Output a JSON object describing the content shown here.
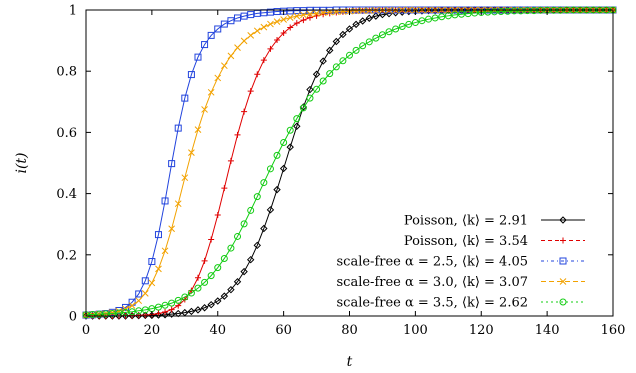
{
  "chart_data": {
    "type": "line",
    "title": "",
    "xlabel": "t",
    "ylabel": "i(t)",
    "xlim": [
      0,
      160
    ],
    "ylim": [
      0,
      1
    ],
    "xticks": [
      0,
      20,
      40,
      60,
      80,
      100,
      120,
      140,
      160
    ],
    "xtick_labels": [
      "0",
      "20",
      "40",
      "60",
      "80",
      "100",
      "120",
      "140",
      "160"
    ],
    "yticks": [
      0,
      0.2,
      0.4,
      0.6,
      0.8,
      1
    ],
    "ytick_labels": [
      "0",
      "0.2",
      "0.4",
      "0.6",
      "0.8",
      "1"
    ],
    "grid": false,
    "legend_position": "bottom-right",
    "x": [
      0,
      2,
      4,
      6,
      8,
      10,
      12,
      14,
      16,
      18,
      20,
      22,
      24,
      26,
      28,
      30,
      32,
      34,
      36,
      38,
      40,
      42,
      44,
      46,
      48,
      50,
      52,
      54,
      56,
      58,
      60,
      62,
      64,
      66,
      68,
      70,
      72,
      74,
      76,
      78,
      80,
      82,
      84,
      86,
      88,
      90,
      92,
      94,
      96,
      98,
      100,
      102,
      104,
      106,
      108,
      110,
      112,
      114,
      116,
      118,
      120,
      122,
      124,
      126,
      128,
      130,
      132,
      134,
      136,
      138,
      140,
      142,
      144,
      146,
      148,
      150,
      152,
      154,
      156,
      158,
      160
    ],
    "series": [
      {
        "name": "Poisson, ⟨k⟩ = 2.91",
        "color": "#000000",
        "marker": "diamond",
        "dash": "",
        "values": [
          0.0,
          0.0,
          0.0,
          0.0,
          0.0,
          0.0,
          0.0,
          0.001,
          0.001,
          0.002,
          0.002,
          0.003,
          0.004,
          0.006,
          0.008,
          0.011,
          0.015,
          0.02,
          0.027,
          0.037,
          0.049,
          0.065,
          0.086,
          0.112,
          0.145,
          0.184,
          0.231,
          0.286,
          0.347,
          0.413,
          0.482,
          0.552,
          0.62,
          0.683,
          0.74,
          0.79,
          0.833,
          0.868,
          0.897,
          0.92,
          0.938,
          0.953,
          0.964,
          0.973,
          0.98,
          0.985,
          0.988,
          0.991,
          0.993,
          0.995,
          0.996,
          0.997,
          0.998,
          0.998,
          0.999,
          0.999,
          0.999,
          0.999,
          1.0,
          1.0,
          1.0,
          1.0,
          1.0,
          1.0,
          1.0,
          1.0,
          1.0,
          1.0,
          1.0,
          1.0,
          1.0,
          1.0,
          1.0,
          1.0,
          1.0,
          1.0,
          1.0,
          1.0,
          1.0,
          1.0,
          1.0
        ]
      },
      {
        "name": "Poisson, ⟨k⟩ = 3.54",
        "color": "#e00000",
        "marker": "plus",
        "dash": "4,3",
        "values": [
          0.0,
          0.0,
          0.0,
          0.0,
          0.0,
          0.0,
          0.001,
          0.001,
          0.002,
          0.003,
          0.005,
          0.008,
          0.013,
          0.021,
          0.034,
          0.054,
          0.083,
          0.125,
          0.18,
          0.25,
          0.33,
          0.418,
          0.507,
          0.592,
          0.668,
          0.735,
          0.79,
          0.836,
          0.873,
          0.902,
          0.925,
          0.943,
          0.957,
          0.967,
          0.975,
          0.981,
          0.986,
          0.989,
          0.992,
          0.994,
          0.996,
          0.997,
          0.997,
          0.998,
          0.999,
          0.999,
          0.999,
          0.999,
          1.0,
          1.0,
          1.0,
          1.0,
          1.0,
          1.0,
          1.0,
          1.0,
          1.0,
          1.0,
          1.0,
          1.0,
          1.0,
          1.0,
          1.0,
          1.0,
          1.0,
          1.0,
          1.0,
          1.0,
          1.0,
          1.0,
          1.0,
          1.0,
          1.0,
          1.0,
          1.0,
          1.0,
          1.0,
          1.0,
          1.0,
          1.0,
          1.0
        ]
      },
      {
        "name": "scale-free α = 2.5, ⟨k⟩ = 4.05",
        "color": "#2244dd",
        "marker": "square",
        "dash": "3,3,1,3",
        "values": [
          0.003,
          0.004,
          0.006,
          0.008,
          0.012,
          0.018,
          0.028,
          0.045,
          0.072,
          0.115,
          0.178,
          0.266,
          0.376,
          0.498,
          0.614,
          0.712,
          0.789,
          0.846,
          0.887,
          0.917,
          0.938,
          0.954,
          0.965,
          0.974,
          0.98,
          0.985,
          0.989,
          0.991,
          0.993,
          0.995,
          0.996,
          0.997,
          0.998,
          0.998,
          0.999,
          0.999,
          0.999,
          0.999,
          1.0,
          1.0,
          1.0,
          1.0,
          1.0,
          1.0,
          1.0,
          1.0,
          1.0,
          1.0,
          1.0,
          1.0,
          1.0,
          1.0,
          1.0,
          1.0,
          1.0,
          1.0,
          1.0,
          1.0,
          1.0,
          1.0,
          1.0,
          1.0,
          1.0,
          1.0,
          1.0,
          1.0,
          1.0,
          1.0,
          1.0,
          1.0,
          1.0,
          1.0,
          1.0,
          1.0,
          1.0,
          1.0,
          1.0,
          1.0,
          1.0,
          1.0,
          1.0
        ]
      },
      {
        "name": "scale-free α = 3.0, ⟨k⟩ = 3.07",
        "color": "#f2a200",
        "marker": "cross",
        "dash": "5,3",
        "values": [
          0.003,
          0.004,
          0.006,
          0.008,
          0.011,
          0.016,
          0.023,
          0.034,
          0.05,
          0.074,
          0.108,
          0.154,
          0.213,
          0.285,
          0.367,
          0.452,
          0.534,
          0.609,
          0.675,
          0.731,
          0.778,
          0.818,
          0.85,
          0.877,
          0.899,
          0.917,
          0.932,
          0.944,
          0.954,
          0.962,
          0.969,
          0.975,
          0.98,
          0.984,
          0.987,
          0.989,
          0.991,
          0.993,
          0.994,
          0.995,
          0.996,
          0.997,
          0.998,
          0.998,
          0.999,
          0.999,
          0.999,
          0.999,
          1.0,
          1.0,
          1.0,
          1.0,
          1.0,
          1.0,
          1.0,
          1.0,
          1.0,
          1.0,
          1.0,
          1.0,
          1.0,
          1.0,
          1.0,
          1.0,
          1.0,
          1.0,
          1.0,
          1.0,
          1.0,
          1.0,
          1.0,
          1.0,
          1.0,
          1.0,
          1.0,
          1.0,
          1.0,
          1.0,
          1.0,
          1.0,
          1.0
        ]
      },
      {
        "name": "scale-free α = 3.5, ⟨k⟩ = 2.62",
        "color": "#11cc11",
        "marker": "circle",
        "dash": "2,3",
        "values": [
          0.004,
          0.005,
          0.006,
          0.007,
          0.008,
          0.01,
          0.012,
          0.014,
          0.017,
          0.02,
          0.024,
          0.029,
          0.035,
          0.042,
          0.051,
          0.062,
          0.075,
          0.091,
          0.11,
          0.132,
          0.158,
          0.188,
          0.222,
          0.26,
          0.301,
          0.345,
          0.39,
          0.436,
          0.481,
          0.525,
          0.567,
          0.607,
          0.645,
          0.68,
          0.712,
          0.741,
          0.768,
          0.792,
          0.814,
          0.834,
          0.852,
          0.868,
          0.883,
          0.896,
          0.908,
          0.919,
          0.929,
          0.938,
          0.946,
          0.953,
          0.959,
          0.965,
          0.97,
          0.974,
          0.978,
          0.981,
          0.984,
          0.986,
          0.988,
          0.99,
          0.992,
          0.993,
          0.994,
          0.995,
          0.996,
          0.997,
          0.997,
          0.998,
          0.998,
          0.999,
          0.999,
          0.999,
          0.999,
          1.0,
          1.0,
          1.0,
          1.0,
          1.0,
          1.0,
          1.0,
          1.0
        ]
      }
    ]
  }
}
